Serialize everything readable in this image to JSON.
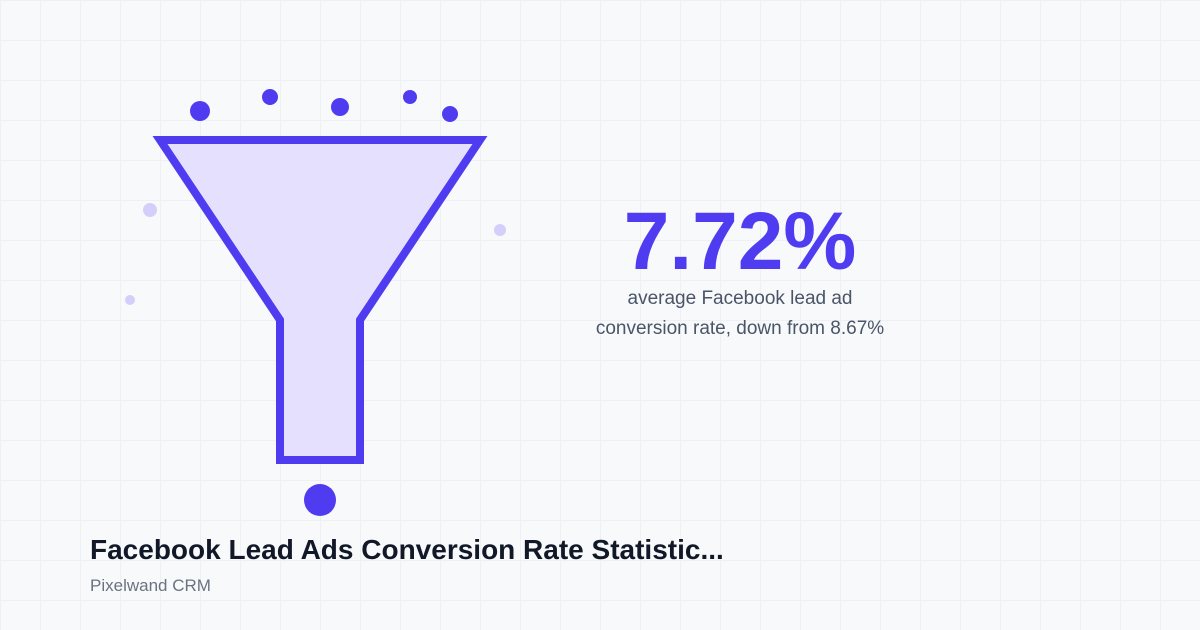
{
  "stat": {
    "value": "7.72%",
    "caption_line1": "average Facebook lead ad",
    "caption_line2": "conversion rate, down from 8.67%"
  },
  "footer": {
    "title": "Facebook Lead Ads Conversion Rate Statistic...",
    "brand": "Pixelwand CRM"
  }
}
